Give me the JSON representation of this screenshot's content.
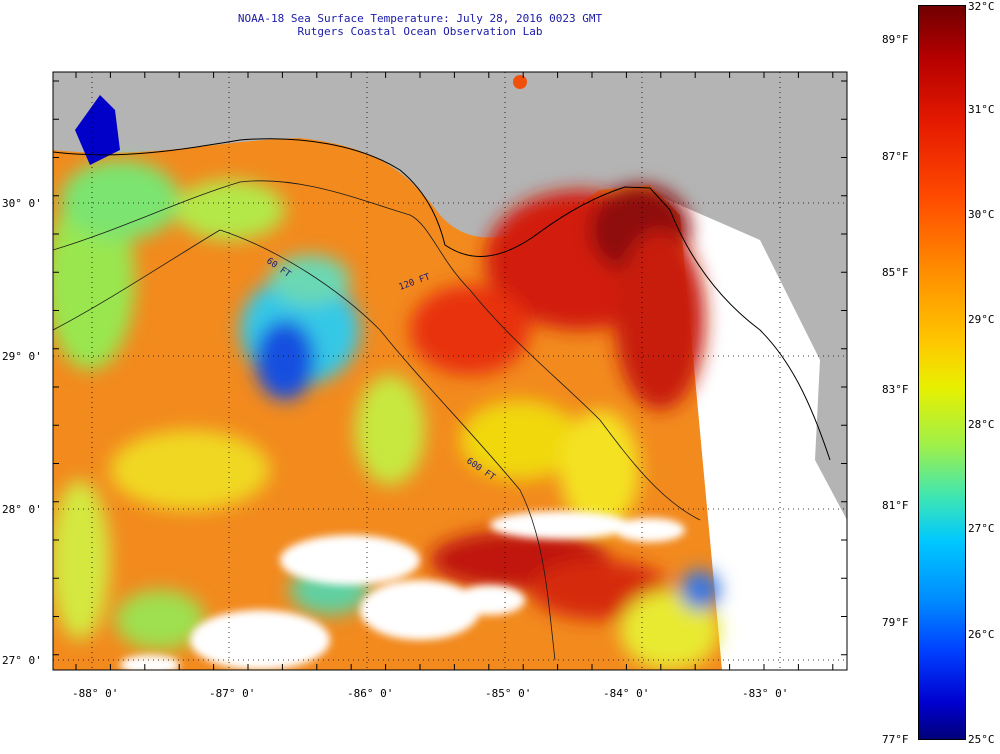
{
  "title": {
    "line1": "NOAA-18 Sea Surface Temperature:  July 28, 2016 0023 GMT",
    "line2": "Rutgers Coastal Ocean Observation Lab"
  },
  "map": {
    "lat_labels": [
      "30° 0'",
      "29° 0'",
      "28° 0'",
      "27° 0'"
    ],
    "lon_labels": [
      "-88° 0'",
      "-87° 0'",
      "-86° 0'",
      "-85° 0'",
      "-84° 0'",
      "-83° 0'"
    ],
    "isobaths": [
      "60 FT",
      "120 FT",
      "600 FT"
    ],
    "colors": {
      "land": "#b4b4b4",
      "no_data": "#ffffff",
      "grid": "#000000"
    }
  },
  "colorbar": {
    "fahrenheit_labels": [
      "89°F",
      "87°F",
      "85°F",
      "83°F",
      "81°F",
      "79°F",
      "77°F"
    ],
    "celsius_labels": [
      "32°C",
      "31°C",
      "30°C",
      "29°C",
      "28°C",
      "27°C",
      "26°C",
      "25°C"
    ],
    "min_c": 25,
    "max_c": 32
  }
}
